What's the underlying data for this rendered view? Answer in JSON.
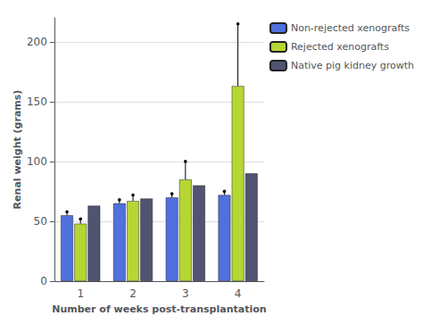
{
  "chart_data": {
    "type": "bar",
    "xlabel": "Number of weeks post-transplantation",
    "ylabel": "Renal weight (grams)",
    "categories": [
      "1",
      "2",
      "3",
      "4"
    ],
    "series": [
      {
        "name": "Non-rejected xenografts",
        "values": [
          55,
          65,
          70,
          72
        ],
        "error_up": [
          3,
          3,
          3,
          3
        ]
      },
      {
        "name": "Rejected xenografts",
        "values": [
          48,
          67,
          85,
          163
        ],
        "error_up": [
          4,
          5,
          15,
          52
        ]
      },
      {
        "name": "Native pig kidney growth",
        "values": [
          63,
          69,
          80,
          90
        ],
        "error_up": [
          0,
          0,
          0,
          0
        ]
      }
    ],
    "ylim": [
      0,
      220
    ],
    "yticks": [
      0,
      50,
      100,
      150,
      200
    ],
    "grid": true,
    "legend": "upper right"
  }
}
